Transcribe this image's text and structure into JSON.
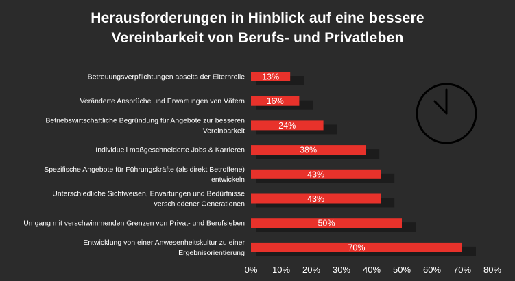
{
  "chart_data": {
    "type": "bar",
    "orientation": "horizontal",
    "title": [
      "Herausforderungen in Hinblick auf eine bessere",
      "Vereinbarkeit von Berufs- und Privatleben"
    ],
    "categories": [
      [
        "Betreuungsverpflichtungen abseits der Elternrolle"
      ],
      [
        "Veränderte Ansprüche und Erwartungen von Vätern"
      ],
      [
        "Betriebswirtschaftliche Begründung für Angebote zur besseren",
        "Vereinbarkeit"
      ],
      [
        "Individuell maßgeschneiderte Jobs & Karrieren"
      ],
      [
        "Spezifische Angebote für Führungskräfte (als direkt Betroffene)",
        "entwickeln"
      ],
      [
        "Unterschiedliche Sichtweisen, Erwartungen und Bedürfnisse",
        "verschiedener Generationen"
      ],
      [
        "Umgang mit verschwimmenden Grenzen von Privat- und Berufsleben"
      ],
      [
        "Entwicklung von einer Anwesenheitskultur zu einer",
        "Ergebnisorientierung"
      ]
    ],
    "values": [
      13,
      16,
      24,
      38,
      43,
      43,
      50,
      70
    ],
    "value_labels": [
      "13%",
      "16%",
      "24%",
      "38%",
      "43%",
      "43%",
      "50%",
      "70%"
    ],
    "xlim": [
      0,
      80
    ],
    "ticks": [
      "0%",
      "10%",
      "20%",
      "30%",
      "40%",
      "50%",
      "60%",
      "70%",
      "80%"
    ],
    "bar_color": "#e8322b",
    "grid": false,
    "legend": "none"
  },
  "decor": {
    "icon": "clock-icon",
    "icon_color": "#000000"
  }
}
